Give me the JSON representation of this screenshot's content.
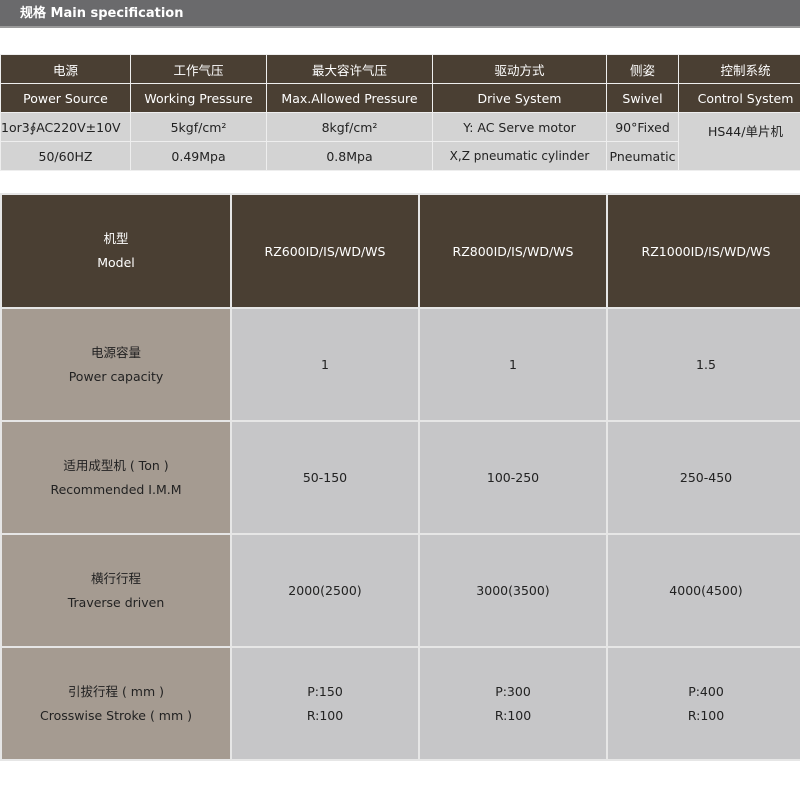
{
  "title": "规格 Main specification",
  "spec_table": {
    "headers_zh": [
      "电源",
      "工作气压",
      "最大容许气压",
      "驱动方式",
      "侧姿",
      "控制系统"
    ],
    "headers_en": [
      "Power Source",
      "Working Pressure",
      "Max.Allowed Pressure",
      "Drive System",
      "Swivel",
      "Control System"
    ],
    "rows": [
      [
        "1or3∮AC220V±10V",
        "5kgf/cm²",
        "8kgf/cm²",
        "Y: AC Serve motor",
        "90°Fixed",
        "HS44/单片机"
      ],
      [
        "50/60HZ",
        "0.49Mpa",
        "0.8Mpa",
        "X,Z pneumatic cylinder",
        "Pneumatic"
      ]
    ]
  },
  "model_table": {
    "header": {
      "zh": "机型",
      "en": "Model",
      "models": [
        "RZ600ID/IS/WD/WS",
        "RZ800ID/IS/WD/WS",
        "RZ1000ID/IS/WD/WS"
      ]
    },
    "rows": [
      {
        "zh": "电源容量",
        "en": "Power capacity",
        "values": [
          [
            "1"
          ],
          [
            "1"
          ],
          [
            "1.5"
          ]
        ]
      },
      {
        "zh": "适用成型机 ( Ton )",
        "en": "Recommended I.M.M",
        "values": [
          [
            "50-150"
          ],
          [
            "100-250"
          ],
          [
            "250-450"
          ]
        ]
      },
      {
        "zh": "横行行程",
        "en": "Traverse driven",
        "values": [
          [
            "2000(2500)"
          ],
          [
            "3000(3500)"
          ],
          [
            "4000(4500)"
          ]
        ]
      },
      {
        "zh": "引拔行程 ( mm )",
        "en": "Crosswise Stroke ( mm )",
        "values": [
          [
            "P:150",
            "R:100"
          ],
          [
            "P:300",
            "R:100"
          ],
          [
            "P:400",
            "R:100"
          ]
        ]
      }
    ]
  }
}
